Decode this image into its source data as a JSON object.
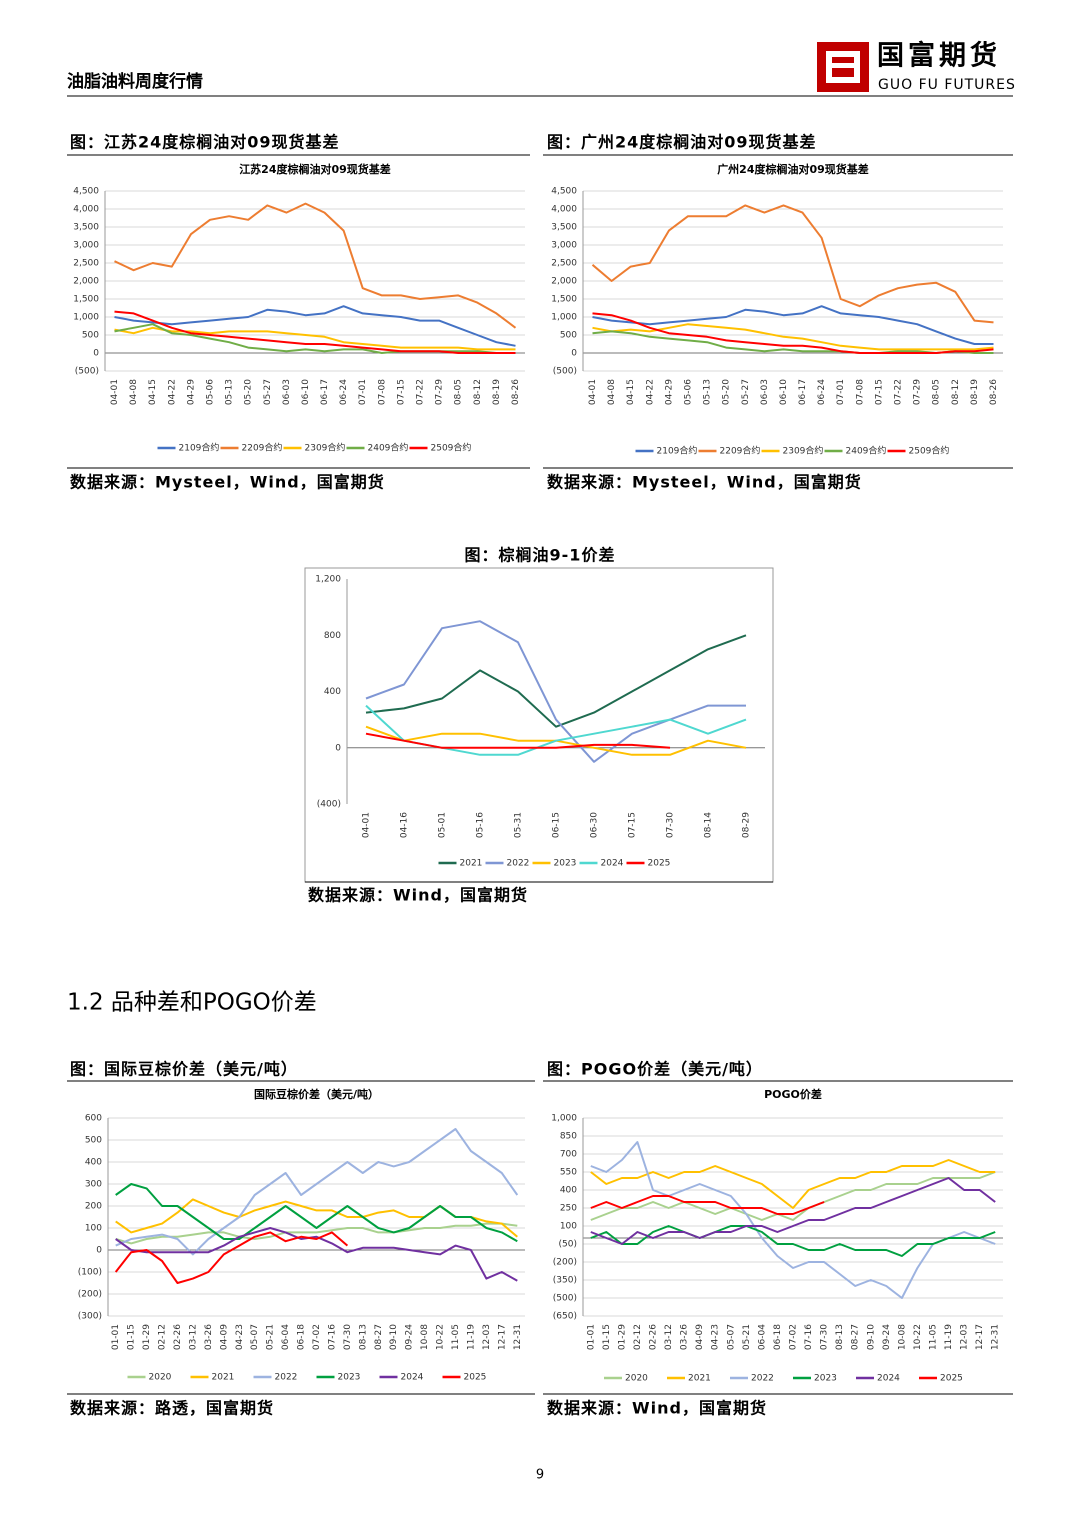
{
  "header": {
    "title": "油脂油料周度行情",
    "logo_cn": "国富期货",
    "logo_en": "GUO FU FUTURES"
  },
  "captions": [
    "图：江苏24度棕榈油对09现货基差",
    "图：广州24度棕榈油对09现货基差",
    "图：棕榈油9-1价差",
    "图：国际豆棕价差（美元/吨）",
    "图：POGO价差（美元/吨）"
  ],
  "sources": [
    "数据来源：Mysteel，Wind，国富期货",
    "数据来源：Mysteel，Wind，国富期货",
    "数据来源：Wind，国富期货",
    "数据来源：路透，国富期货",
    "数据来源：Wind，国富期货"
  ],
  "section": "1.2 品种差和POGO价差",
  "page_number": "9",
  "chart_data": [
    {
      "type": "line",
      "title": "江苏24度棕榈油对09现货基差",
      "grid": true,
      "categories": [
        "04-01",
        "04-08",
        "04-15",
        "04-22",
        "04-29",
        "05-06",
        "05-13",
        "05-20",
        "05-27",
        "06-03",
        "06-10",
        "06-17",
        "06-24",
        "07-01",
        "07-08",
        "07-15",
        "07-22",
        "07-29",
        "08-05",
        "08-12",
        "08-19",
        "08-26"
      ],
      "ylim": [
        -500,
        4500
      ],
      "yticks": [
        {
          "value": -500,
          "label": "(500)"
        },
        0,
        500,
        {
          "value": 1000,
          "label": "1,000"
        },
        {
          "value": 1500,
          "label": "1,500"
        },
        {
          "value": 2000,
          "label": "2,000"
        },
        {
          "value": 2500,
          "label": "2,500"
        },
        {
          "value": 3000,
          "label": "3,000"
        },
        {
          "value": 3500,
          "label": "3,500"
        },
        {
          "value": 4000,
          "label": "4,000"
        },
        {
          "value": 4500,
          "label": "4,500"
        }
      ],
      "series": [
        {
          "name": "2109合约",
          "color": "#4472c4",
          "values": [
            1000,
            900,
            850,
            800,
            850,
            900,
            950,
            1000,
            1200,
            1150,
            1050,
            1100,
            1300,
            1100,
            1050,
            1000,
            900,
            900,
            700,
            500,
            300,
            200
          ]
        },
        {
          "name": "2209合约",
          "color": "#ed7d31",
          "values": [
            2550,
            2300,
            2500,
            2400,
            3300,
            3700,
            3800,
            3700,
            4100,
            3900,
            4150,
            3900,
            3400,
            1800,
            1600,
            1600,
            1500,
            1550,
            1600,
            1400,
            1100,
            700
          ]
        },
        {
          "name": "2309合约",
          "color": "#ffc000",
          "values": [
            650,
            550,
            700,
            600,
            600,
            550,
            600,
            600,
            600,
            550,
            500,
            450,
            300,
            250,
            200,
            150,
            150,
            150,
            150,
            100,
            100,
            100
          ]
        },
        {
          "name": "2409合约",
          "color": "#70ad47",
          "values": [
            600,
            700,
            800,
            550,
            500,
            400,
            300,
            150,
            100,
            50,
            100,
            50,
            100,
            100,
            0,
            50,
            50,
            50,
            50,
            50,
            0,
            0
          ]
        },
        {
          "name": "2509合约",
          "color": "#ff0000",
          "values": [
            1150,
            1100,
            900,
            700,
            550,
            500,
            450,
            400,
            350,
            300,
            250,
            250,
            200,
            150,
            100,
            50,
            50,
            50,
            0,
            0,
            0,
            0
          ]
        }
      ]
    },
    {
      "type": "line",
      "title": "广州24度棕榈油对09现货基差",
      "grid": true,
      "categories": [
        "04-01",
        "04-08",
        "04-15",
        "04-22",
        "04-29",
        "05-06",
        "05-13",
        "05-20",
        "05-27",
        "06-03",
        "06-10",
        "06-17",
        "06-24",
        "07-01",
        "07-08",
        "07-15",
        "07-22",
        "07-29",
        "08-05",
        "08-12",
        "08-19",
        "08-26"
      ],
      "ylim": [
        -500,
        4500
      ],
      "yticks": [
        {
          "value": -500,
          "label": "(500)"
        },
        0,
        500,
        {
          "value": 1000,
          "label": "1,000"
        },
        {
          "value": 1500,
          "label": "1,500"
        },
        {
          "value": 2000,
          "label": "2,000"
        },
        {
          "value": 2500,
          "label": "2,500"
        },
        {
          "value": 3000,
          "label": "3,000"
        },
        {
          "value": 3500,
          "label": "3,500"
        },
        {
          "value": 4000,
          "label": "4,000"
        },
        {
          "value": 4500,
          "label": "4,500"
        }
      ],
      "series": [
        {
          "name": "2109合约",
          "color": "#4472c4",
          "values": [
            1000,
            900,
            850,
            800,
            850,
            900,
            950,
            1000,
            1200,
            1150,
            1050,
            1100,
            1300,
            1100,
            1050,
            1000,
            900,
            800,
            600,
            400,
            250,
            250
          ]
        },
        {
          "name": "2209合约",
          "color": "#ed7d31",
          "values": [
            2450,
            2000,
            2400,
            2500,
            3400,
            3800,
            3800,
            3800,
            4100,
            3900,
            4100,
            3900,
            3200,
            1500,
            1300,
            1600,
            1800,
            1900,
            1950,
            1700,
            900,
            850
          ]
        },
        {
          "name": "2309合约",
          "color": "#ffc000",
          "values": [
            700,
            600,
            650,
            600,
            700,
            800,
            750,
            700,
            650,
            550,
            450,
            400,
            300,
            200,
            150,
            100,
            100,
            100,
            100,
            100,
            100,
            150
          ]
        },
        {
          "name": "2409合约",
          "color": "#70ad47",
          "values": [
            550,
            600,
            550,
            450,
            400,
            350,
            300,
            150,
            100,
            50,
            100,
            50,
            50,
            50,
            0,
            0,
            50,
            50,
            0,
            50,
            0,
            0
          ]
        },
        {
          "name": "2509合约",
          "color": "#ff0000",
          "values": [
            1100,
            1050,
            900,
            700,
            550,
            500,
            450,
            350,
            300,
            250,
            200,
            200,
            150,
            50,
            0,
            0,
            0,
            0,
            0,
            50,
            50,
            100
          ]
        }
      ]
    },
    {
      "type": "line",
      "grid": false,
      "categories": [
        "04-01",
        "04-16",
        "05-01",
        "05-16",
        "05-31",
        "06-15",
        "06-30",
        "07-15",
        "07-30",
        "08-14",
        "08-29"
      ],
      "ylim": [
        -400,
        1200
      ],
      "yticks": [
        {
          "value": -400,
          "label": "(400)"
        },
        0,
        400,
        800,
        {
          "value": 1200,
          "label": "1,200"
        }
      ],
      "series": [
        {
          "name": "2021",
          "color": "#1f6b50",
          "values": [
            250,
            280,
            350,
            550,
            400,
            150,
            250,
            400,
            550,
            700,
            800
          ]
        },
        {
          "name": "2022",
          "color": "#7f96d4",
          "values": [
            350,
            450,
            850,
            900,
            750,
            200,
            -100,
            100,
            200,
            300,
            300
          ]
        },
        {
          "name": "2023",
          "color": "#ffc000",
          "values": [
            150,
            50,
            100,
            100,
            50,
            50,
            0,
            -50,
            -50,
            50,
            0
          ]
        },
        {
          "name": "2024",
          "color": "#4fd8d0",
          "values": [
            300,
            50,
            0,
            -50,
            -50,
            50,
            100,
            150,
            200,
            100,
            200
          ]
        },
        {
          "name": "2025",
          "color": "#ff0000",
          "values": [
            100,
            50,
            0,
            0,
            0,
            0,
            20,
            20,
            0,
            null,
            null
          ]
        }
      ]
    },
    {
      "type": "line",
      "title": "国际豆棕价差（美元/吨）",
      "grid": true,
      "categories": [
        "01-01",
        "01-15",
        "01-29",
        "02-12",
        "02-26",
        "03-12",
        "03-26",
        "04-09",
        "04-23",
        "05-07",
        "05-21",
        "06-04",
        "06-18",
        "07-02",
        "07-16",
        "07-30",
        "08-13",
        "08-27",
        "09-10",
        "09-24",
        "10-08",
        "10-22",
        "11-05",
        "11-19",
        "12-03",
        "12-17",
        "12-31"
      ],
      "ylim": [
        -300,
        600
      ],
      "yticks": [
        {
          "value": -300,
          "label": "(300)"
        },
        {
          "value": -200,
          "label": "(200)"
        },
        {
          "value": -100,
          "label": "(100)"
        },
        0,
        100,
        200,
        300,
        400,
        500,
        600
      ],
      "series": [
        {
          "name": "2020",
          "color": "#a9d18e",
          "values": [
            50,
            30,
            50,
            60,
            60,
            70,
            80,
            80,
            60,
            50,
            60,
            80,
            80,
            80,
            90,
            100,
            100,
            80,
            80,
            90,
            100,
            100,
            110,
            110,
            120,
            120,
            110
          ]
        },
        {
          "name": "2021",
          "color": "#ffc000",
          "values": [
            130,
            80,
            100,
            120,
            170,
            230,
            200,
            170,
            150,
            180,
            200,
            220,
            200,
            180,
            180,
            150,
            150,
            170,
            180,
            150,
            150,
            200,
            150,
            150,
            130,
            120,
            60
          ]
        },
        {
          "name": "2022",
          "color": "#9db3e0",
          "values": [
            20,
            50,
            60,
            70,
            50,
            -20,
            50,
            100,
            150,
            250,
            300,
            350,
            250,
            300,
            350,
            400,
            350,
            400,
            380,
            400,
            450,
            500,
            550,
            450,
            400,
            350,
            250
          ]
        },
        {
          "name": "2023",
          "color": "#00a040",
          "values": [
            250,
            300,
            280,
            200,
            200,
            150,
            100,
            50,
            50,
            100,
            150,
            200,
            150,
            100,
            150,
            200,
            150,
            100,
            80,
            100,
            150,
            200,
            150,
            150,
            100,
            80,
            40
          ]
        },
        {
          "name": "2024",
          "color": "#7030a0",
          "values": [
            50,
            0,
            -10,
            -10,
            -10,
            -10,
            -10,
            20,
            60,
            80,
            100,
            80,
            50,
            60,
            30,
            -10,
            10,
            10,
            10,
            0,
            -10,
            -20,
            20,
            0,
            -130,
            -100,
            -140
          ]
        },
        {
          "name": "2025",
          "color": "#ff0000",
          "values": [
            -100,
            -10,
            0,
            -50,
            -150,
            -130,
            -100,
            -20,
            20,
            60,
            80,
            40,
            60,
            50,
            80,
            20,
            null,
            null,
            null,
            null,
            null,
            null,
            null,
            null,
            null,
            null,
            null
          ]
        }
      ]
    },
    {
      "type": "line",
      "title": "POGO价差",
      "grid": true,
      "categories": [
        "01-01",
        "01-15",
        "01-29",
        "02-12",
        "02-26",
        "03-12",
        "03-26",
        "04-09",
        "04-23",
        "05-07",
        "05-21",
        "06-04",
        "06-18",
        "07-02",
        "07-16",
        "07-30",
        "08-13",
        "08-27",
        "09-10",
        "09-24",
        "10-08",
        "10-22",
        "11-05",
        "11-19",
        "12-03",
        "12-17",
        "12-31"
      ],
      "ylim": [
        -650,
        1000
      ],
      "yticks": [
        {
          "value": -650,
          "label": "(650)"
        },
        {
          "value": -500,
          "label": "(500)"
        },
        {
          "value": -350,
          "label": "(350)"
        },
        {
          "value": -200,
          "label": "(200)"
        },
        {
          "value": -50,
          "label": "(50)"
        },
        100,
        250,
        400,
        550,
        700,
        850,
        {
          "value": 1000,
          "label": "1,000"
        }
      ],
      "series": [
        {
          "name": "2020",
          "color": "#a9d18e",
          "values": [
            150,
            200,
            250,
            250,
            300,
            250,
            300,
            250,
            200,
            250,
            200,
            150,
            200,
            150,
            250,
            300,
            350,
            400,
            400,
            450,
            450,
            450,
            500,
            500,
            500,
            500,
            550
          ]
        },
        {
          "name": "2021",
          "color": "#ffc000",
          "values": [
            550,
            450,
            500,
            500,
            550,
            500,
            550,
            550,
            600,
            550,
            500,
            450,
            350,
            250,
            400,
            450,
            500,
            500,
            550,
            550,
            600,
            600,
            600,
            650,
            600,
            550,
            550
          ]
        },
        {
          "name": "2022",
          "color": "#9db3e0",
          "values": [
            600,
            550,
            650,
            800,
            400,
            350,
            400,
            450,
            400,
            350,
            200,
            0,
            -150,
            -250,
            -200,
            -200,
            -300,
            -400,
            -350,
            -400,
            -500,
            -250,
            -50,
            0,
            50,
            0,
            -50
          ]
        },
        {
          "name": "2023",
          "color": "#00a040",
          "values": [
            0,
            50,
            -50,
            -50,
            50,
            100,
            50,
            0,
            50,
            100,
            100,
            50,
            -50,
            -50,
            -100,
            -100,
            -50,
            -100,
            -100,
            -100,
            -150,
            -50,
            -50,
            0,
            0,
            0,
            50
          ]
        },
        {
          "name": "2024",
          "color": "#7030a0",
          "values": [
            50,
            0,
            -50,
            50,
            0,
            50,
            50,
            0,
            50,
            50,
            100,
            100,
            50,
            100,
            150,
            150,
            200,
            250,
            250,
            300,
            350,
            400,
            450,
            500,
            400,
            400,
            300
          ]
        },
        {
          "name": "2025",
          "color": "#ff0000",
          "values": [
            250,
            300,
            250,
            300,
            350,
            350,
            300,
            300,
            300,
            250,
            250,
            250,
            200,
            200,
            250,
            300,
            null,
            null,
            null,
            null,
            null,
            null,
            null,
            null,
            null,
            null,
            null
          ]
        }
      ]
    }
  ]
}
